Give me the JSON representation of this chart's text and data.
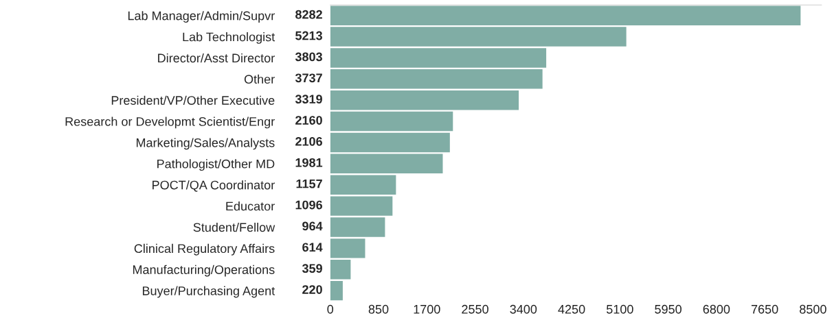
{
  "chart_data": {
    "type": "bar",
    "orientation": "horizontal",
    "categories": [
      "Lab Manager/Admin/Supvr",
      "Lab Technologist",
      "Director/Asst Director",
      "Other",
      "President/VP/Other Executive",
      "Research or Developmt Scientist/Engr",
      "Marketing/Sales/Analysts",
      "Pathologist/Other MD",
      "POCT/QA Coordinator",
      "Educator",
      "Student/Fellow",
      "Clinical Regulatory Affairs",
      "Manufacturing/Operations",
      "Buyer/Purchasing Agent"
    ],
    "values": [
      8282,
      5213,
      3803,
      3737,
      3319,
      2160,
      2106,
      1981,
      1157,
      1096,
      964,
      614,
      359,
      220
    ],
    "color": "#80ada5",
    "xlim": [
      0,
      8650
    ],
    "xticks": [
      0,
      850,
      1700,
      2550,
      3400,
      4250,
      5100,
      5950,
      6800,
      7650,
      8500
    ],
    "data_labels": true,
    "grid": false,
    "legend": false
  }
}
